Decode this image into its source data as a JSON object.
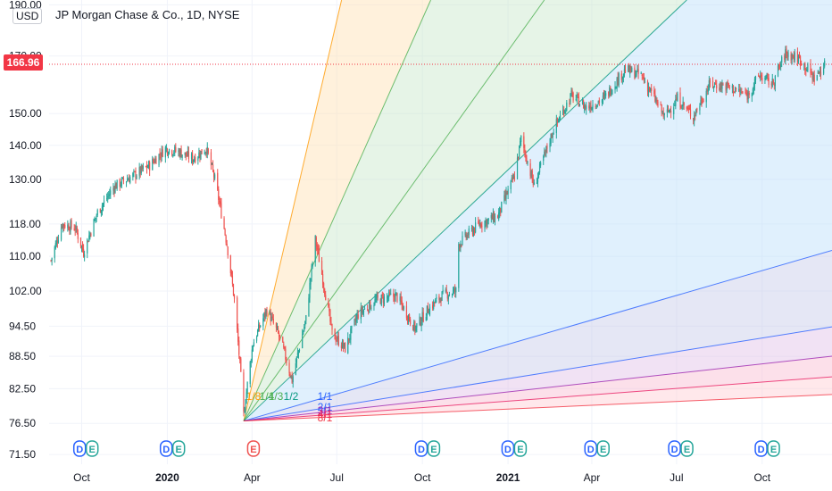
{
  "header": {
    "title": "JP Morgan Chase & Co., 1D, NYSE",
    "currency": "USD",
    "last_price": "166.96"
  },
  "colors": {
    "text": "#131722",
    "last_price": "#f23645",
    "candle_up": "#26a69a",
    "candle_down": "#ef5350",
    "grid": "#f0f3fa",
    "dividend_badge": "#2962ff",
    "earnings_badge": "#26a69a",
    "earnings_badge_negative": "#ef5350"
  },
  "chart_data": {
    "type": "candlestick",
    "title": "JP Morgan Chase & Co., 1D, NYSE",
    "y_axis": {
      "scale": "log",
      "ticks": [
        "190.00",
        "170.00",
        "150.00",
        "140.00",
        "130.00",
        "118.00",
        "110.00",
        "102.00",
        "94.50",
        "88.50",
        "82.50",
        "76.50",
        "71.50"
      ],
      "range": [
        70,
        192
      ]
    },
    "x_axis": {
      "ticks": [
        "Oct",
        "2020",
        "Apr",
        "Jul",
        "Oct",
        "2021",
        "Apr",
        "Jul",
        "Oct"
      ],
      "range": [
        "2019-08-27",
        "2021-12-15"
      ]
    },
    "price_path": [
      [
        "2019-08-29",
        109
      ],
      [
        "2019-09-10",
        118
      ],
      [
        "2019-09-24",
        117
      ],
      [
        "2019-10-03",
        111
      ],
      [
        "2019-10-18",
        121
      ],
      [
        "2019-11-05",
        128
      ],
      [
        "2019-11-25",
        131
      ],
      [
        "2019-12-13",
        134
      ],
      [
        "2019-12-30",
        139
      ],
      [
        "2020-01-14",
        138
      ],
      [
        "2020-01-28",
        136
      ],
      [
        "2020-02-12",
        139
      ],
      [
        "2020-02-21",
        130
      ],
      [
        "2020-03-05",
        113
      ],
      [
        "2020-03-13",
        100
      ],
      [
        "2020-03-23",
        78
      ],
      [
        "2020-04-02",
        91
      ],
      [
        "2020-04-17",
        98
      ],
      [
        "2020-05-01",
        92
      ],
      [
        "2020-05-14",
        84
      ],
      [
        "2020-05-29",
        96
      ],
      [
        "2020-06-08",
        114
      ],
      [
        "2020-06-26",
        93
      ],
      [
        "2020-07-10",
        90
      ],
      [
        "2020-07-24",
        97
      ],
      [
        "2020-08-13",
        100
      ],
      [
        "2020-09-03",
        101
      ],
      [
        "2020-09-23",
        94
      ],
      [
        "2020-10-07",
        98
      ],
      [
        "2020-10-22",
        101
      ],
      [
        "2020-11-06",
        102
      ],
      [
        "2020-11-09",
        113
      ],
      [
        "2020-12-01",
        118
      ],
      [
        "2020-12-21",
        120
      ],
      [
        "2021-01-08",
        131
      ],
      [
        "2021-01-15",
        142
      ],
      [
        "2021-01-29",
        128
      ],
      [
        "2021-02-19",
        145
      ],
      [
        "2021-03-10",
        156
      ],
      [
        "2021-03-26",
        152
      ],
      [
        "2021-04-14",
        155
      ],
      [
        "2021-05-07",
        165
      ],
      [
        "2021-05-24",
        163
      ],
      [
        "2021-06-18",
        149
      ],
      [
        "2021-07-02",
        155
      ],
      [
        "2021-07-19",
        149
      ],
      [
        "2021-08-06",
        160
      ],
      [
        "2021-08-26",
        159
      ],
      [
        "2021-09-15",
        156
      ],
      [
        "2021-09-28",
        163
      ],
      [
        "2021-10-12",
        160
      ],
      [
        "2021-10-26",
        171
      ],
      [
        "2021-11-10",
        169
      ],
      [
        "2021-11-26",
        162
      ],
      [
        "2021-12-08",
        167
      ]
    ],
    "gann_fan": {
      "origin": {
        "date": "2020-03-23",
        "price": 76.9
      },
      "ratio_labels": [
        "1/8",
        "1/4",
        "1/3",
        "1/2",
        "1/1",
        "2/1",
        "3/1",
        "4/1",
        "8/1"
      ],
      "label_colors": [
        "#ff9800",
        "#4caf50",
        "#4caf50",
        "#089981",
        "#2962ff",
        "#2962ff",
        "#9c27b0",
        "#e91e63",
        "#f23645"
      ],
      "fill_colors": [
        "#ffe0b2",
        "#c8e6c9",
        "#c8e6c9",
        "#bbdefb",
        "#c5cae9",
        "#e1bee7",
        "#f8bbd0",
        "#ffcdd2"
      ]
    },
    "last_price": 166.96,
    "event_badges": [
      {
        "date": "2019-10-06",
        "letters": [
          "D",
          "E"
        ]
      },
      {
        "date": "2020-01-07",
        "letters": [
          "D",
          "E"
        ]
      },
      {
        "date": "2020-04-03",
        "letters": [
          "E"
        ],
        "negative": true
      },
      {
        "date": "2020-10-07",
        "letters": [
          "D",
          "E"
        ]
      },
      {
        "date": "2021-01-08",
        "letters": [
          "D",
          "E"
        ]
      },
      {
        "date": "2021-04-07",
        "letters": [
          "D",
          "E"
        ]
      },
      {
        "date": "2021-07-06",
        "letters": [
          "D",
          "E"
        ]
      },
      {
        "date": "2021-10-07",
        "letters": [
          "D",
          "E"
        ]
      }
    ]
  }
}
